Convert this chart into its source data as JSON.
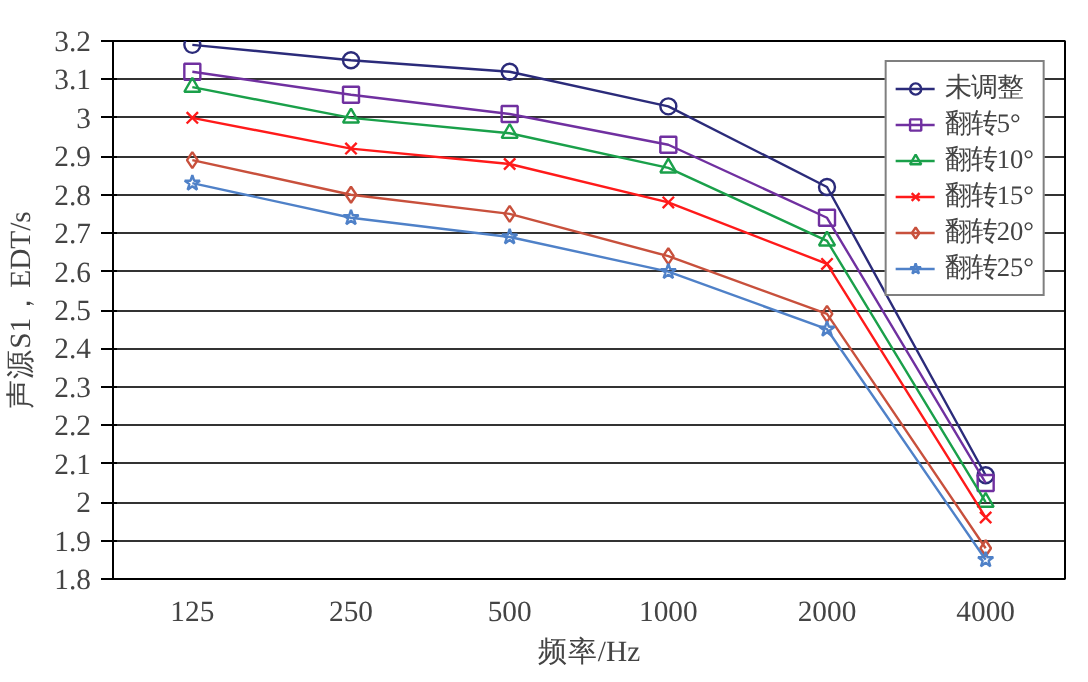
{
  "chart_data": {
    "type": "line",
    "xlabel": "频率/Hz",
    "ylabel": "声源S1，EDT/s",
    "categories": [
      "125",
      "250",
      "500",
      "1000",
      "2000",
      "4000"
    ],
    "series": [
      {
        "name": "未调整",
        "color": "#2b2b7a",
        "marker": "circle",
        "values": [
          3.19,
          3.15,
          3.12,
          3.03,
          2.82,
          2.07
        ]
      },
      {
        "name": "翻转5°",
        "color": "#7030a0",
        "marker": "square",
        "values": [
          3.12,
          3.06,
          3.01,
          2.93,
          2.74,
          2.05
        ]
      },
      {
        "name": "翻转10°",
        "color": "#1aa04a",
        "marker": "triangle",
        "values": [
          3.08,
          3.0,
          2.96,
          2.87,
          2.68,
          2.0
        ]
      },
      {
        "name": "翻转15°",
        "color": "#ff1a1a",
        "marker": "cross",
        "values": [
          3.0,
          2.92,
          2.88,
          2.78,
          2.62,
          1.96
        ]
      },
      {
        "name": "翻转20°",
        "color": "#c8503c",
        "marker": "diamond",
        "values": [
          2.89,
          2.8,
          2.75,
          2.64,
          2.49,
          1.88
        ]
      },
      {
        "name": "翻转25°",
        "color": "#4f81c8",
        "marker": "star",
        "values": [
          2.83,
          2.74,
          2.69,
          2.6,
          2.45,
          1.85
        ]
      }
    ],
    "ylim": [
      1.8,
      3.2
    ],
    "yticks": [
      1.8,
      1.9,
      2,
      2.1,
      2.2,
      2.3,
      2.4,
      2.5,
      2.6,
      2.7,
      2.8,
      2.9,
      3,
      3.1,
      3.2
    ],
    "grid": "y",
    "legend": "top right",
    "line_style": "solid"
  }
}
